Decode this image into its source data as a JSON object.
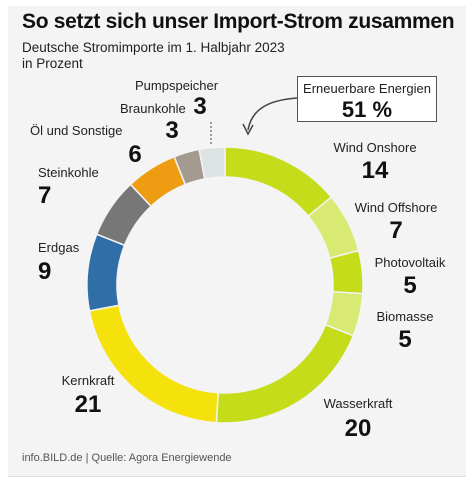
{
  "title": "So setzt sich unser Import-Strom zusammen",
  "subtitle_line1": "Deutsche Stromimporte im 1. Halbjahr 2023",
  "subtitle_line2": "in Prozent",
  "callout": {
    "label": "Erneuerbare Energien",
    "value": "51 %"
  },
  "footer": "info.BILD.de | Quelle: Agora Energiewende",
  "chart_data": {
    "type": "pie",
    "style": "donut",
    "unit": "%",
    "start_angle_deg": 0,
    "direction": "clockwise",
    "slices": [
      {
        "label": "Wind Onshore",
        "value": 14,
        "color": "#c5dc1a",
        "group": "Erneuerbare Energien"
      },
      {
        "label": "Wind Offshore",
        "value": 7,
        "color": "#d8ea72",
        "group": "Erneuerbare Energien"
      },
      {
        "label": "Photovoltaik",
        "value": 5,
        "color": "#c5dc1a",
        "group": "Erneuerbare Energien"
      },
      {
        "label": "Biomasse",
        "value": 5,
        "color": "#d8ea72",
        "group": "Erneuerbare Energien"
      },
      {
        "label": "Wasserkraft",
        "value": 20,
        "color": "#c5dc1a",
        "group": "Erneuerbare Energien"
      },
      {
        "label": "Kernkraft",
        "value": 21,
        "color": "#f5e10c"
      },
      {
        "label": "Erdgas",
        "value": 9,
        "color": "#2f6ea7"
      },
      {
        "label": "Steinkohle",
        "value": 7,
        "color": "#777777"
      },
      {
        "label": "Öl und Sonstige",
        "value": 6,
        "color": "#ee9c12"
      },
      {
        "label": "Braunkohle",
        "value": 3,
        "color": "#a39a90"
      },
      {
        "label": "Pumpspeicher",
        "value": 3,
        "color": "#dde3e2"
      }
    ]
  }
}
